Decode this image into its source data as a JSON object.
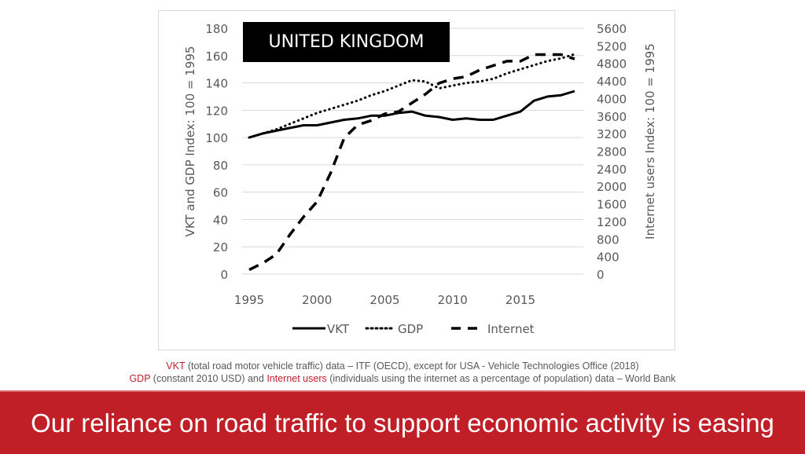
{
  "chart_data": {
    "type": "line",
    "title": "UNITED KINGDOM",
    "x": [
      1995,
      1996,
      1997,
      1998,
      1999,
      2000,
      2001,
      2002,
      2003,
      2004,
      2005,
      2006,
      2007,
      2008,
      2009,
      2010,
      2011,
      2012,
      2013,
      2014,
      2015,
      2016,
      2017,
      2018,
      2019
    ],
    "x_ticks": [
      "1995",
      "2000",
      "2005",
      "2010",
      "2015"
    ],
    "xlim": [
      1995,
      2019
    ],
    "ylabel": "VKT and GDP Index: 100 = 1995",
    "ylim": [
      0,
      180
    ],
    "y_ticks": [
      "0",
      "20",
      "40",
      "60",
      "80",
      "100",
      "120",
      "140",
      "160",
      "180"
    ],
    "y2label": "Internet users Index: 100 = 1995",
    "y2lim": [
      0,
      5600
    ],
    "y2_ticks": [
      "0",
      "400",
      "800",
      "1200",
      "1600",
      "2000",
      "2400",
      "2800",
      "3200",
      "3600",
      "4000",
      "4400",
      "4800",
      "5200",
      "5600"
    ],
    "grid": true,
    "legend_position": "bottom",
    "series": [
      {
        "name": "VKT",
        "axis": "left",
        "style": "solid",
        "values": [
          100,
          103,
          105,
          107,
          109,
          109,
          111,
          113,
          114,
          116,
          116,
          118,
          119,
          116,
          115,
          113,
          114,
          113,
          113,
          116,
          119,
          127,
          130,
          131,
          134
        ]
      },
      {
        "name": "GDP",
        "axis": "left",
        "style": "dotted",
        "values": [
          100,
          103,
          106,
          110,
          114,
          118,
          121,
          124,
          127,
          131,
          134,
          138,
          142,
          141,
          136,
          138,
          140,
          141,
          143,
          147,
          150,
          153,
          156,
          158,
          161
        ]
      },
      {
        "name": "Internet",
        "axis": "right",
        "style": "dashed",
        "values": [
          100,
          250,
          450,
          900,
          1300,
          1650,
          2300,
          3100,
          3400,
          3500,
          3650,
          3700,
          3900,
          4100,
          4350,
          4450,
          4500,
          4650,
          4750,
          4850,
          4850,
          5000,
          5000,
          5000,
          4900
        ]
      }
    ]
  },
  "notes": {
    "line1_hl": "VKT",
    "line1_rest": " (total road motor vehicle traffic) data – ITF (OECD), except for USA - Vehicle Technologies Office (2018)",
    "line2_hl1": "GDP",
    "line2_mid": " (constant 2010 USD) and ",
    "line2_hl2": "Internet users",
    "line2_rest": " (individuals using the internet as a percentage of population) data – World Bank"
  },
  "banner": {
    "text": "Our reliance on road traffic to support economic activity is easing"
  },
  "colors": {
    "accent": "#c01f27",
    "highlight_text": "#c0202a",
    "line": "#000000",
    "grid": "#d9d9d9",
    "tick_text": "#595959"
  }
}
